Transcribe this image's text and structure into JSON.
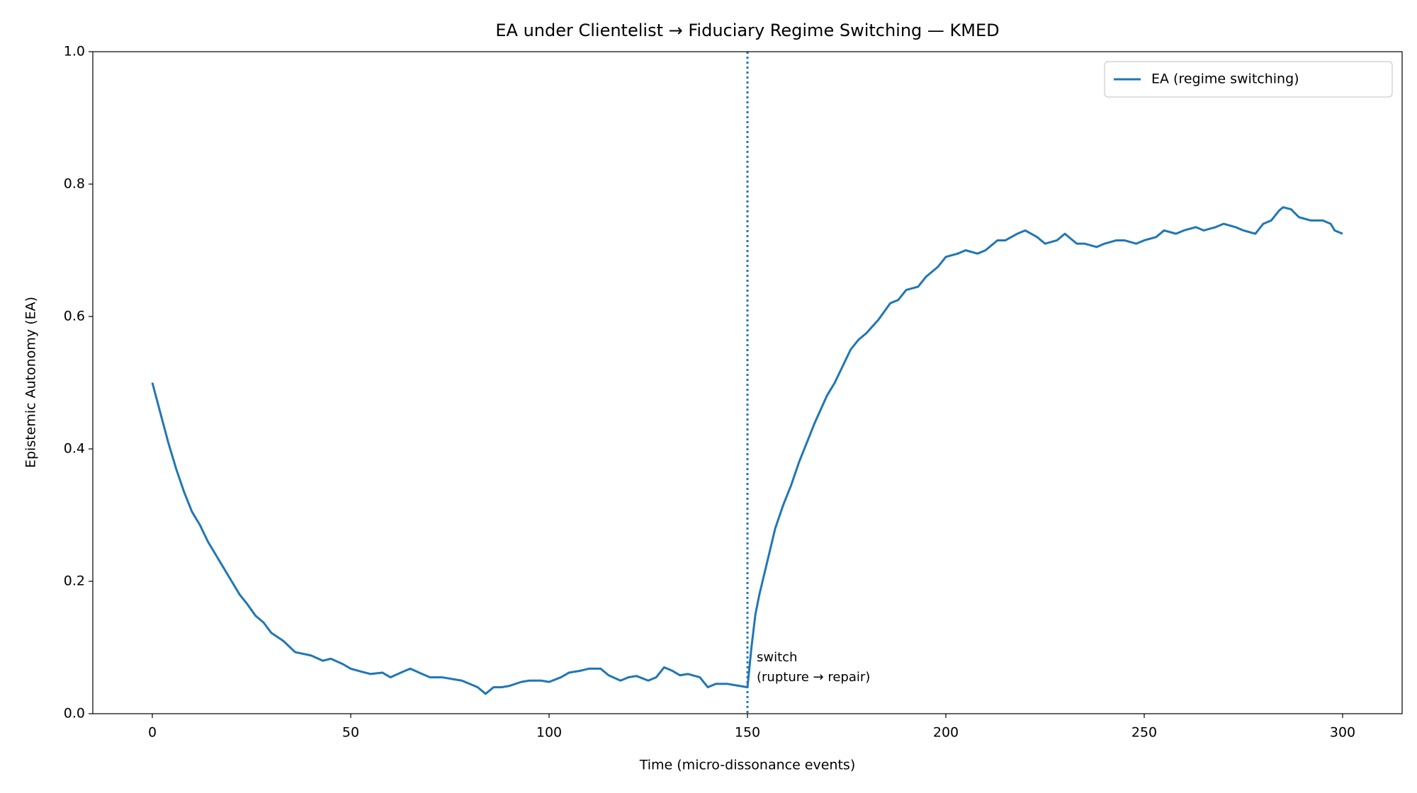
{
  "chart_data": {
    "type": "line",
    "title": "EA under Clientelist → Fiduciary Regime Switching — KMED",
    "xlabel": "Time (micro-dissonance events)",
    "ylabel": "Epistemic Autonomy (EA)",
    "x": [
      0,
      2,
      4,
      6,
      8,
      10,
      12,
      14,
      16,
      18,
      20,
      22,
      24,
      26,
      28,
      30,
      33,
      36,
      40,
      43,
      45,
      48,
      50,
      53,
      55,
      58,
      60,
      63,
      65,
      68,
      70,
      73,
      75,
      78,
      80,
      82,
      84,
      86,
      88,
      90,
      93,
      95,
      98,
      100,
      103,
      105,
      108,
      110,
      113,
      115,
      118,
      120,
      122,
      125,
      127,
      129,
      131,
      133,
      135,
      138,
      140,
      142,
      145,
      148,
      150,
      151,
      152,
      153,
      155,
      157,
      159,
      161,
      163,
      165,
      167,
      170,
      172,
      174,
      176,
      178,
      180,
      183,
      186,
      188,
      190,
      193,
      195,
      198,
      200,
      203,
      205,
      208,
      210,
      213,
      215,
      218,
      220,
      223,
      225,
      228,
      230,
      233,
      235,
      238,
      240,
      243,
      245,
      248,
      250,
      253,
      255,
      258,
      260,
      263,
      265,
      268,
      270,
      273,
      275,
      278,
      280,
      282,
      284,
      285,
      287,
      289,
      292,
      295,
      297,
      298,
      300
    ],
    "series": [
      {
        "name": "EA (regime switching)",
        "color": "#1f77b4",
        "values": [
          0.5,
          0.455,
          0.41,
          0.37,
          0.335,
          0.305,
          0.285,
          0.26,
          0.24,
          0.22,
          0.2,
          0.18,
          0.165,
          0.148,
          0.138,
          0.122,
          0.11,
          0.093,
          0.088,
          0.08,
          0.083,
          0.075,
          0.068,
          0.063,
          0.06,
          0.062,
          0.055,
          0.063,
          0.068,
          0.06,
          0.055,
          0.055,
          0.053,
          0.05,
          0.045,
          0.04,
          0.03,
          0.04,
          0.04,
          0.042,
          0.048,
          0.05,
          0.05,
          0.048,
          0.055,
          0.062,
          0.065,
          0.068,
          0.068,
          0.058,
          0.05,
          0.055,
          0.057,
          0.05,
          0.055,
          0.07,
          0.065,
          0.058,
          0.06,
          0.055,
          0.04,
          0.045,
          0.045,
          0.042,
          0.04,
          0.1,
          0.15,
          0.18,
          0.23,
          0.28,
          0.315,
          0.345,
          0.38,
          0.41,
          0.44,
          0.48,
          0.5,
          0.525,
          0.55,
          0.565,
          0.575,
          0.595,
          0.62,
          0.625,
          0.64,
          0.645,
          0.66,
          0.675,
          0.69,
          0.695,
          0.7,
          0.695,
          0.7,
          0.715,
          0.715,
          0.725,
          0.73,
          0.72,
          0.71,
          0.715,
          0.725,
          0.71,
          0.71,
          0.705,
          0.71,
          0.715,
          0.715,
          0.71,
          0.715,
          0.72,
          0.73,
          0.725,
          0.73,
          0.735,
          0.73,
          0.735,
          0.74,
          0.735,
          0.73,
          0.725,
          0.74,
          0.745,
          0.76,
          0.765,
          0.762,
          0.75,
          0.745,
          0.745,
          0.74,
          0.73,
          0.725
        ]
      }
    ],
    "xlim": [
      -15,
      315
    ],
    "ylim": [
      0,
      1
    ],
    "xticks": [
      0,
      50,
      100,
      150,
      200,
      250,
      300
    ],
    "yticks": [
      {
        "value": 0,
        "label": "0.0"
      },
      0.2,
      0.4,
      0.6,
      0.8,
      {
        "value": 1,
        "label": "1.0"
      }
    ],
    "vline": {
      "x": 150,
      "color": "#1f77b4",
      "annotation": [
        "switch",
        "(rupture → repair)"
      ]
    },
    "legend": "upper right",
    "grid": false
  }
}
